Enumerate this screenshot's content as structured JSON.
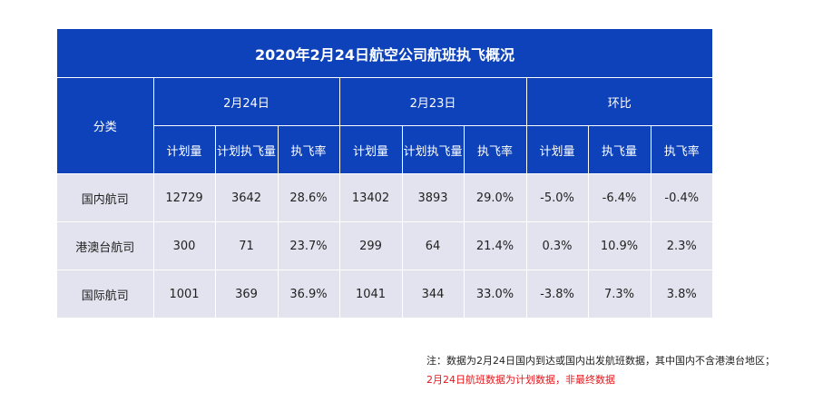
{
  "table": {
    "title": "2020年2月24日航空公司航班执飞概况",
    "category_header": "分类",
    "groups": [
      "2月24日",
      "2月23日",
      "环比"
    ],
    "sub_headers": [
      "计划量",
      "计划执飞量",
      "执飞率",
      "计划量",
      "计划执飞量",
      "执飞率",
      "计划量",
      "执飞量",
      "执飞率"
    ],
    "rows": [
      {
        "label": "国内航司",
        "cells": [
          "12729",
          "3642",
          "28.6%",
          "13402",
          "3893",
          "29.0%",
          "-5.0%",
          "-6.4%",
          "-0.4%"
        ]
      },
      {
        "label": "港澳台航司",
        "cells": [
          "300",
          "71",
          "23.7%",
          "299",
          "64",
          "21.4%",
          "0.3%",
          "10.9%",
          "2.3%"
        ]
      },
      {
        "label": "国际航司",
        "cells": [
          "1001",
          "369",
          "36.9%",
          "1041",
          "344",
          "33.0%",
          "-3.8%",
          "7.3%",
          "3.8%"
        ]
      }
    ]
  },
  "notes": {
    "line1": "注：数据为2月24日国内到达或国内出发航班数据，其中国内不含港澳台地区；",
    "line2": "2月24日航班数据为计划数据，非最终数据"
  },
  "colors": {
    "header_bg": "#0e42ba",
    "row_bg": "#e3e3ef",
    "note_red": "#e8141a"
  }
}
